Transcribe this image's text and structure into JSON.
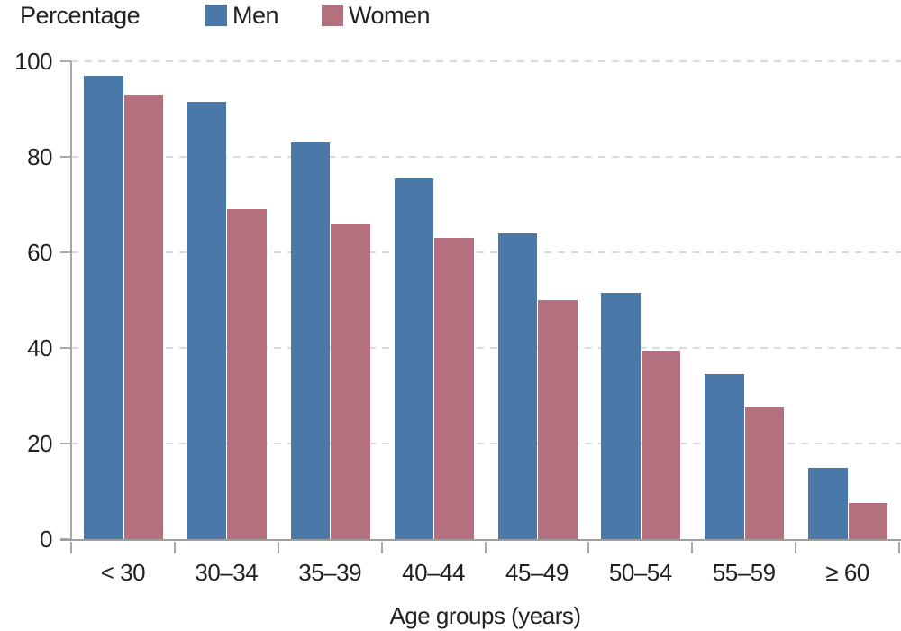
{
  "chart_data": {
    "type": "bar",
    "title": "",
    "y_axis_title": "Percentage",
    "x_axis_title": "Age groups (years)",
    "categories": [
      "< 30",
      "30–34",
      "35–39",
      "40–44",
      "45–49",
      "50–54",
      "55–59",
      "≥ 60"
    ],
    "series": [
      {
        "name": "Men",
        "color": "#4a78a8",
        "values": [
          97,
          91.5,
          83,
          75.5,
          64,
          51.5,
          34.5,
          15
        ]
      },
      {
        "name": "Women",
        "color": "#b4707e",
        "values": [
          93,
          69,
          66,
          63,
          50,
          39.5,
          27.5,
          7.5
        ]
      }
    ],
    "ylim": [
      0,
      100
    ],
    "y_ticks": [
      0,
      20,
      40,
      60,
      80,
      100
    ],
    "grid": "horizontal-dashed",
    "legend_position": "top-left",
    "colors": {
      "axis": "#a8a8a8",
      "baseline": "#9e9e9e",
      "gridline": "#d9d9d9",
      "text": "#232021"
    }
  }
}
